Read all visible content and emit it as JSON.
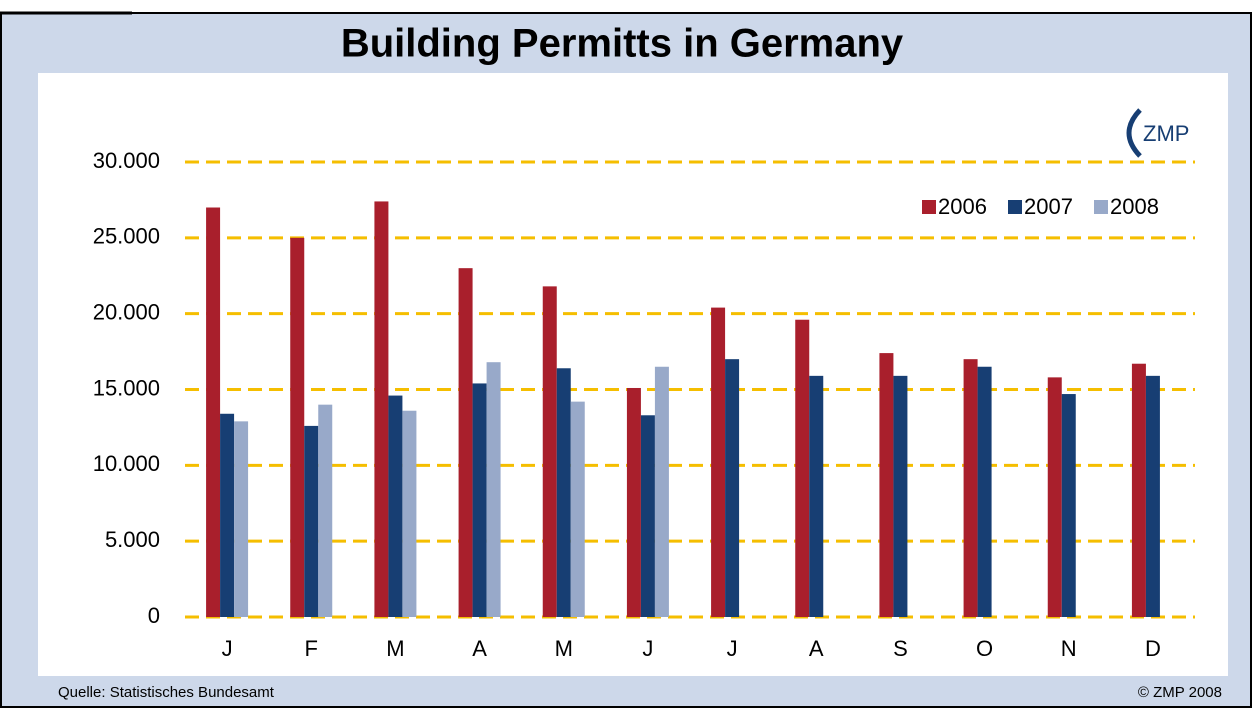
{
  "chart_data": {
    "type": "bar",
    "title": "Building Permitts in Germany",
    "logo": "ZMP",
    "source": "Quelle: Statistisches Bundesamt",
    "copyright": "© ZMP 2008",
    "categories": [
      "J",
      "F",
      "M",
      "A",
      "M",
      "J",
      "J",
      "A",
      "S",
      "O",
      "N",
      "D"
    ],
    "series": [
      {
        "name": "2006",
        "color": "#a91f2c",
        "values": [
          27000,
          25000,
          27400,
          23000,
          21800,
          15100,
          20400,
          19600,
          17400,
          17000,
          15800,
          16700
        ]
      },
      {
        "name": "2007",
        "color": "#173e73",
        "values": [
          13400,
          12600,
          14600,
          15400,
          16400,
          13300,
          17000,
          15900,
          15900,
          16500,
          14700,
          15900
        ]
      },
      {
        "name": "2008",
        "color": "#98a9c9",
        "values": [
          12900,
          14000,
          13600,
          16800,
          14200,
          16500,
          null,
          null,
          null,
          null,
          null,
          null
        ]
      }
    ],
    "ylim": [
      0,
      30000
    ],
    "yticks": [
      0,
      {
        "value": 5000,
        "label": "5.000"
      },
      {
        "value": 10000,
        "label": "10.000"
      },
      {
        "value": 15000,
        "label": "15.000"
      },
      {
        "value": 20000,
        "label": "20.000"
      },
      {
        "value": 25000,
        "label": "25.000"
      },
      {
        "value": 30000,
        "label": "30.000"
      }
    ],
    "grid": true,
    "legend": "top-right"
  }
}
